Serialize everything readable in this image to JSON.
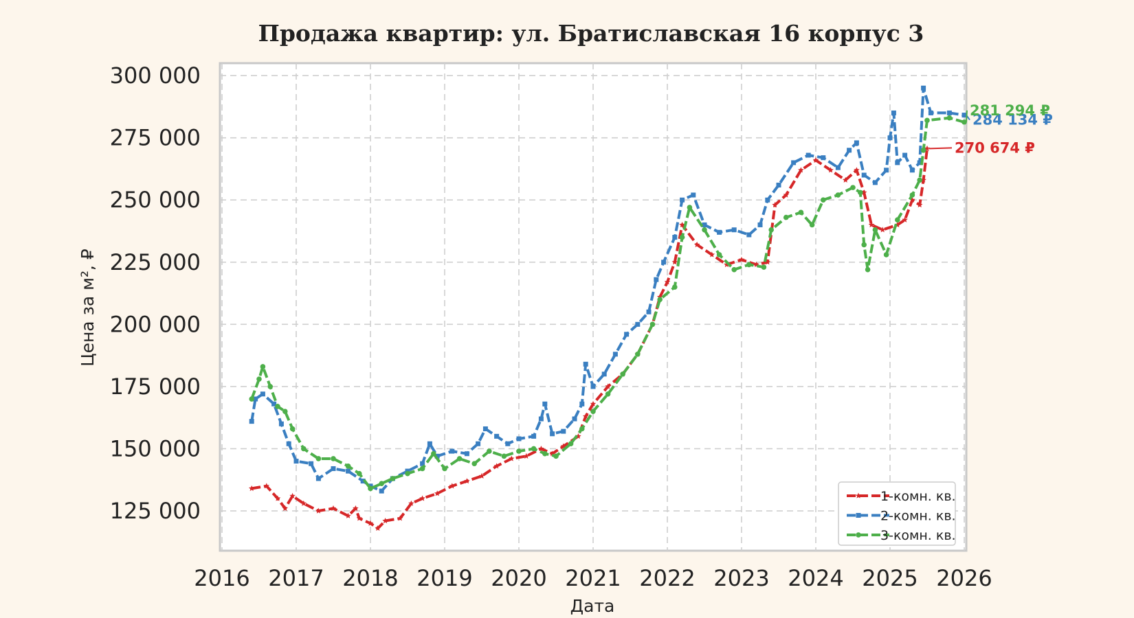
{
  "chart_data": {
    "type": "line",
    "title": "Продажа квартир: ул. Братиславская 16 корпус 3",
    "xlabel": "Дата",
    "ylabel": "Цена за м², ₽",
    "x_ticks": [
      "2016",
      "2017",
      "2018",
      "2019",
      "2020",
      "2021",
      "2022",
      "2023",
      "2024",
      "2025",
      "2026"
    ],
    "y_ticks": [
      "125 000",
      "150 000",
      "175 000",
      "200 000",
      "225 000",
      "250 000",
      "275 000",
      "300 000"
    ],
    "xlim": [
      2016.0,
      2026.0
    ],
    "ylim": [
      109000,
      305000
    ],
    "grid": true,
    "legend_position": "lower-right",
    "series": [
      {
        "name": "1-комн. кв.",
        "color": "#d62728",
        "marker": "star",
        "last_label": "270 674 ₽",
        "points": [
          [
            2016.4,
            134000
          ],
          [
            2016.6,
            135000
          ],
          [
            2016.75,
            130000
          ],
          [
            2016.85,
            126000
          ],
          [
            2016.95,
            131000
          ],
          [
            2017.1,
            128000
          ],
          [
            2017.3,
            125000
          ],
          [
            2017.5,
            126000
          ],
          [
            2017.7,
            123000
          ],
          [
            2017.8,
            126000
          ],
          [
            2017.85,
            122000
          ],
          [
            2018.0,
            120000
          ],
          [
            2018.1,
            118000
          ],
          [
            2018.2,
            121000
          ],
          [
            2018.4,
            122000
          ],
          [
            2018.55,
            128000
          ],
          [
            2018.7,
            130000
          ],
          [
            2018.9,
            132000
          ],
          [
            2019.1,
            135000
          ],
          [
            2019.3,
            137000
          ],
          [
            2019.5,
            139000
          ],
          [
            2019.7,
            143000
          ],
          [
            2019.9,
            146000
          ],
          [
            2020.1,
            147000
          ],
          [
            2020.3,
            150000
          ],
          [
            2020.45,
            148000
          ],
          [
            2020.6,
            151000
          ],
          [
            2020.8,
            155000
          ],
          [
            2020.9,
            163000
          ],
          [
            2021.0,
            168000
          ],
          [
            2021.2,
            175000
          ],
          [
            2021.4,
            180000
          ],
          [
            2021.6,
            188000
          ],
          [
            2021.8,
            200000
          ],
          [
            2021.9,
            211000
          ],
          [
            2022.0,
            217000
          ],
          [
            2022.1,
            225000
          ],
          [
            2022.2,
            240000
          ],
          [
            2022.4,
            232000
          ],
          [
            2022.6,
            228000
          ],
          [
            2022.8,
            224000
          ],
          [
            2023.0,
            226000
          ],
          [
            2023.2,
            224000
          ],
          [
            2023.35,
            225000
          ],
          [
            2023.45,
            248000
          ],
          [
            2023.6,
            252000
          ],
          [
            2023.8,
            262000
          ],
          [
            2024.0,
            266000
          ],
          [
            2024.2,
            262000
          ],
          [
            2024.4,
            258000
          ],
          [
            2024.55,
            262000
          ],
          [
            2024.65,
            253000
          ],
          [
            2024.75,
            240000
          ],
          [
            2024.9,
            238000
          ],
          [
            2025.1,
            240000
          ],
          [
            2025.2,
            242000
          ],
          [
            2025.3,
            250000
          ],
          [
            2025.4,
            248000
          ],
          [
            2025.45,
            258000
          ],
          [
            2025.5,
            270674
          ]
        ]
      },
      {
        "name": "2-комн. кв.",
        "color": "#3a7fc1",
        "marker": "square",
        "last_label": "284 134 ₽",
        "points": [
          [
            2016.4,
            161000
          ],
          [
            2016.45,
            170000
          ],
          [
            2016.55,
            172000
          ],
          [
            2016.7,
            168000
          ],
          [
            2016.8,
            160000
          ],
          [
            2016.9,
            152000
          ],
          [
            2017.0,
            145000
          ],
          [
            2017.2,
            144000
          ],
          [
            2017.3,
            138000
          ],
          [
            2017.5,
            142000
          ],
          [
            2017.7,
            141000
          ],
          [
            2017.9,
            137000
          ],
          [
            2018.0,
            135000
          ],
          [
            2018.15,
            133000
          ],
          [
            2018.3,
            138000
          ],
          [
            2018.5,
            141000
          ],
          [
            2018.7,
            144000
          ],
          [
            2018.8,
            152000
          ],
          [
            2018.9,
            147000
          ],
          [
            2019.1,
            149000
          ],
          [
            2019.3,
            148000
          ],
          [
            2019.45,
            152000
          ],
          [
            2019.55,
            158000
          ],
          [
            2019.7,
            155000
          ],
          [
            2019.85,
            152000
          ],
          [
            2020.0,
            154000
          ],
          [
            2020.2,
            155000
          ],
          [
            2020.3,
            162000
          ],
          [
            2020.35,
            168000
          ],
          [
            2020.45,
            156000
          ],
          [
            2020.6,
            157000
          ],
          [
            2020.75,
            162000
          ],
          [
            2020.85,
            168000
          ],
          [
            2020.9,
            184000
          ],
          [
            2021.0,
            175000
          ],
          [
            2021.15,
            180000
          ],
          [
            2021.3,
            188000
          ],
          [
            2021.45,
            196000
          ],
          [
            2021.6,
            200000
          ],
          [
            2021.75,
            205000
          ],
          [
            2021.85,
            218000
          ],
          [
            2021.95,
            225000
          ],
          [
            2022.1,
            235000
          ],
          [
            2022.2,
            250000
          ],
          [
            2022.35,
            252000
          ],
          [
            2022.5,
            240000
          ],
          [
            2022.7,
            237000
          ],
          [
            2022.9,
            238000
          ],
          [
            2023.1,
            236000
          ],
          [
            2023.25,
            240000
          ],
          [
            2023.35,
            250000
          ],
          [
            2023.5,
            256000
          ],
          [
            2023.7,
            265000
          ],
          [
            2023.9,
            268000
          ],
          [
            2024.1,
            267000
          ],
          [
            2024.3,
            263000
          ],
          [
            2024.45,
            270000
          ],
          [
            2024.55,
            273000
          ],
          [
            2024.65,
            260000
          ],
          [
            2024.8,
            257000
          ],
          [
            2024.95,
            262000
          ],
          [
            2025.0,
            275000
          ],
          [
            2025.05,
            285000
          ],
          [
            2025.1,
            265000
          ],
          [
            2025.2,
            268000
          ],
          [
            2025.3,
            262000
          ],
          [
            2025.4,
            265000
          ],
          [
            2025.45,
            295000
          ],
          [
            2025.55,
            285000
          ],
          [
            2025.8,
            285000
          ],
          [
            2026.0,
            284134
          ]
        ]
      },
      {
        "name": "3-комн. кв.",
        "color": "#4daf4a",
        "marker": "circle",
        "last_label": "281 294 ₽",
        "points": [
          [
            2016.4,
            170000
          ],
          [
            2016.5,
            178000
          ],
          [
            2016.55,
            183000
          ],
          [
            2016.65,
            175000
          ],
          [
            2016.75,
            167000
          ],
          [
            2016.85,
            165000
          ],
          [
            2016.95,
            158000
          ],
          [
            2017.1,
            150000
          ],
          [
            2017.3,
            146000
          ],
          [
            2017.5,
            146000
          ],
          [
            2017.7,
            143000
          ],
          [
            2017.85,
            140000
          ],
          [
            2018.0,
            134000
          ],
          [
            2018.15,
            136000
          ],
          [
            2018.3,
            138000
          ],
          [
            2018.5,
            140000
          ],
          [
            2018.7,
            142000
          ],
          [
            2018.85,
            148000
          ],
          [
            2019.0,
            142000
          ],
          [
            2019.2,
            146000
          ],
          [
            2019.4,
            144000
          ],
          [
            2019.6,
            149000
          ],
          [
            2019.8,
            147000
          ],
          [
            2020.0,
            149000
          ],
          [
            2020.2,
            150000
          ],
          [
            2020.35,
            148000
          ],
          [
            2020.5,
            147000
          ],
          [
            2020.7,
            152000
          ],
          [
            2020.85,
            158000
          ],
          [
            2021.0,
            165000
          ],
          [
            2021.2,
            172000
          ],
          [
            2021.4,
            180000
          ],
          [
            2021.6,
            188000
          ],
          [
            2021.8,
            200000
          ],
          [
            2021.9,
            210000
          ],
          [
            2022.1,
            215000
          ],
          [
            2022.2,
            235000
          ],
          [
            2022.3,
            247000
          ],
          [
            2022.5,
            238000
          ],
          [
            2022.7,
            228000
          ],
          [
            2022.9,
            222000
          ],
          [
            2023.1,
            224000
          ],
          [
            2023.3,
            223000
          ],
          [
            2023.4,
            238000
          ],
          [
            2023.6,
            243000
          ],
          [
            2023.8,
            245000
          ],
          [
            2023.95,
            240000
          ],
          [
            2024.1,
            250000
          ],
          [
            2024.3,
            252000
          ],
          [
            2024.5,
            255000
          ],
          [
            2024.6,
            253000
          ],
          [
            2024.65,
            232000
          ],
          [
            2024.7,
            222000
          ],
          [
            2024.8,
            238000
          ],
          [
            2024.95,
            228000
          ],
          [
            2025.1,
            242000
          ],
          [
            2025.3,
            252000
          ],
          [
            2025.4,
            258000
          ],
          [
            2025.45,
            270000
          ],
          [
            2025.5,
            282000
          ],
          [
            2025.8,
            283000
          ],
          [
            2026.0,
            281294
          ]
        ]
      }
    ]
  }
}
